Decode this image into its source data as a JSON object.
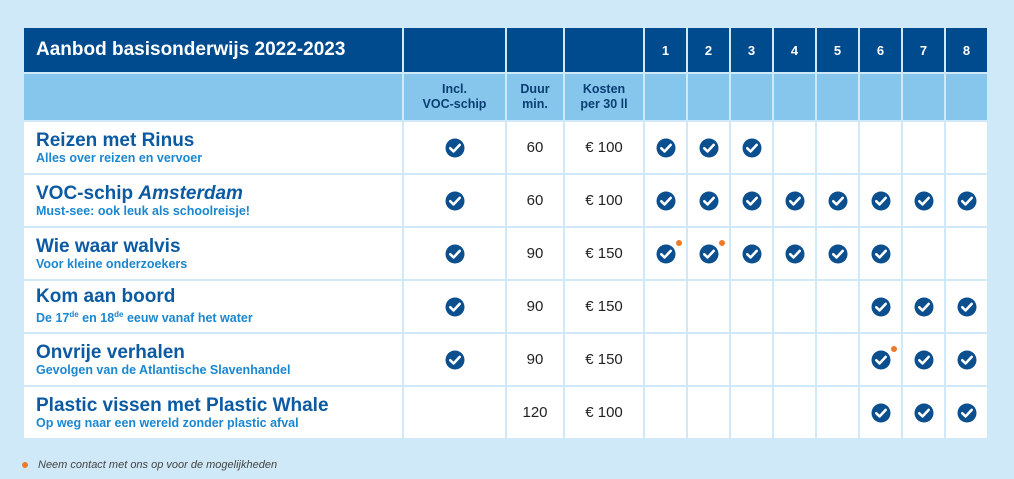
{
  "table": {
    "title": "Aanbod basisonderwijs 2022-2023",
    "grades": [
      "1",
      "2",
      "3",
      "4",
      "5",
      "6",
      "7",
      "8"
    ],
    "col_voc": [
      "Incl.",
      "VOC-schip"
    ],
    "col_duration": [
      "Duur",
      "min."
    ],
    "col_cost": [
      "Kosten",
      "per 30 ll"
    ],
    "rows": [
      {
        "title": "Reizen met Rinus",
        "subtitle": "Alles over reizen en vervoer",
        "voc": true,
        "duration": "60",
        "cost": "€ 100",
        "grades": [
          1,
          2,
          3
        ],
        "contact_grades": []
      },
      {
        "title_prefix": "VOC-schip ",
        "title_em": "Amsterdam",
        "subtitle": "Must-see: ook leuk als schoolreisje!",
        "voc": true,
        "duration": "60",
        "cost": "€ 100",
        "grades": [
          1,
          2,
          3,
          4,
          5,
          6,
          7,
          8
        ],
        "contact_grades": []
      },
      {
        "title": "Wie waar walvis",
        "subtitle": "Voor kleine onderzoekers",
        "voc": true,
        "duration": "90",
        "cost": "€ 150",
        "grades": [
          1,
          2,
          3,
          4,
          5,
          6
        ],
        "contact_grades": [
          1,
          2
        ]
      },
      {
        "title": "Kom aan boord",
        "subtitle_parts": [
          "De 17",
          "de",
          " en 18",
          "de",
          " eeuw vanaf het water"
        ],
        "voc": true,
        "duration": "90",
        "cost": "€ 150",
        "grades": [
          6,
          7,
          8
        ],
        "contact_grades": []
      },
      {
        "title": "Onvrije verhalen",
        "subtitle": "Gevolgen van de Atlantische Slavenhandel",
        "voc": true,
        "duration": "90",
        "cost": "€ 150",
        "grades": [
          6,
          7,
          8
        ],
        "contact_grades": [
          6
        ]
      },
      {
        "title": "Plastic vissen met Plastic Whale",
        "subtitle": "Op weg naar een wereld zonder plastic afval",
        "voc": false,
        "duration": "120",
        "cost": "€ 100",
        "grades": [
          6,
          7,
          8
        ],
        "contact_grades": []
      }
    ]
  },
  "footnote": "Neem contact met ons op voor de mogelijkheden",
  "icons": {
    "check": "check-circle-icon",
    "contact": "orange-dot-icon"
  },
  "colors": {
    "header_dark": "#004b8e",
    "header_light": "#86c6ec",
    "title_blue": "#0b5aa2",
    "subtitle_blue": "#1a87d0",
    "check": "#0b4f8e",
    "contact_dot": "#ec7a2b",
    "background": "#cfe9f8"
  }
}
